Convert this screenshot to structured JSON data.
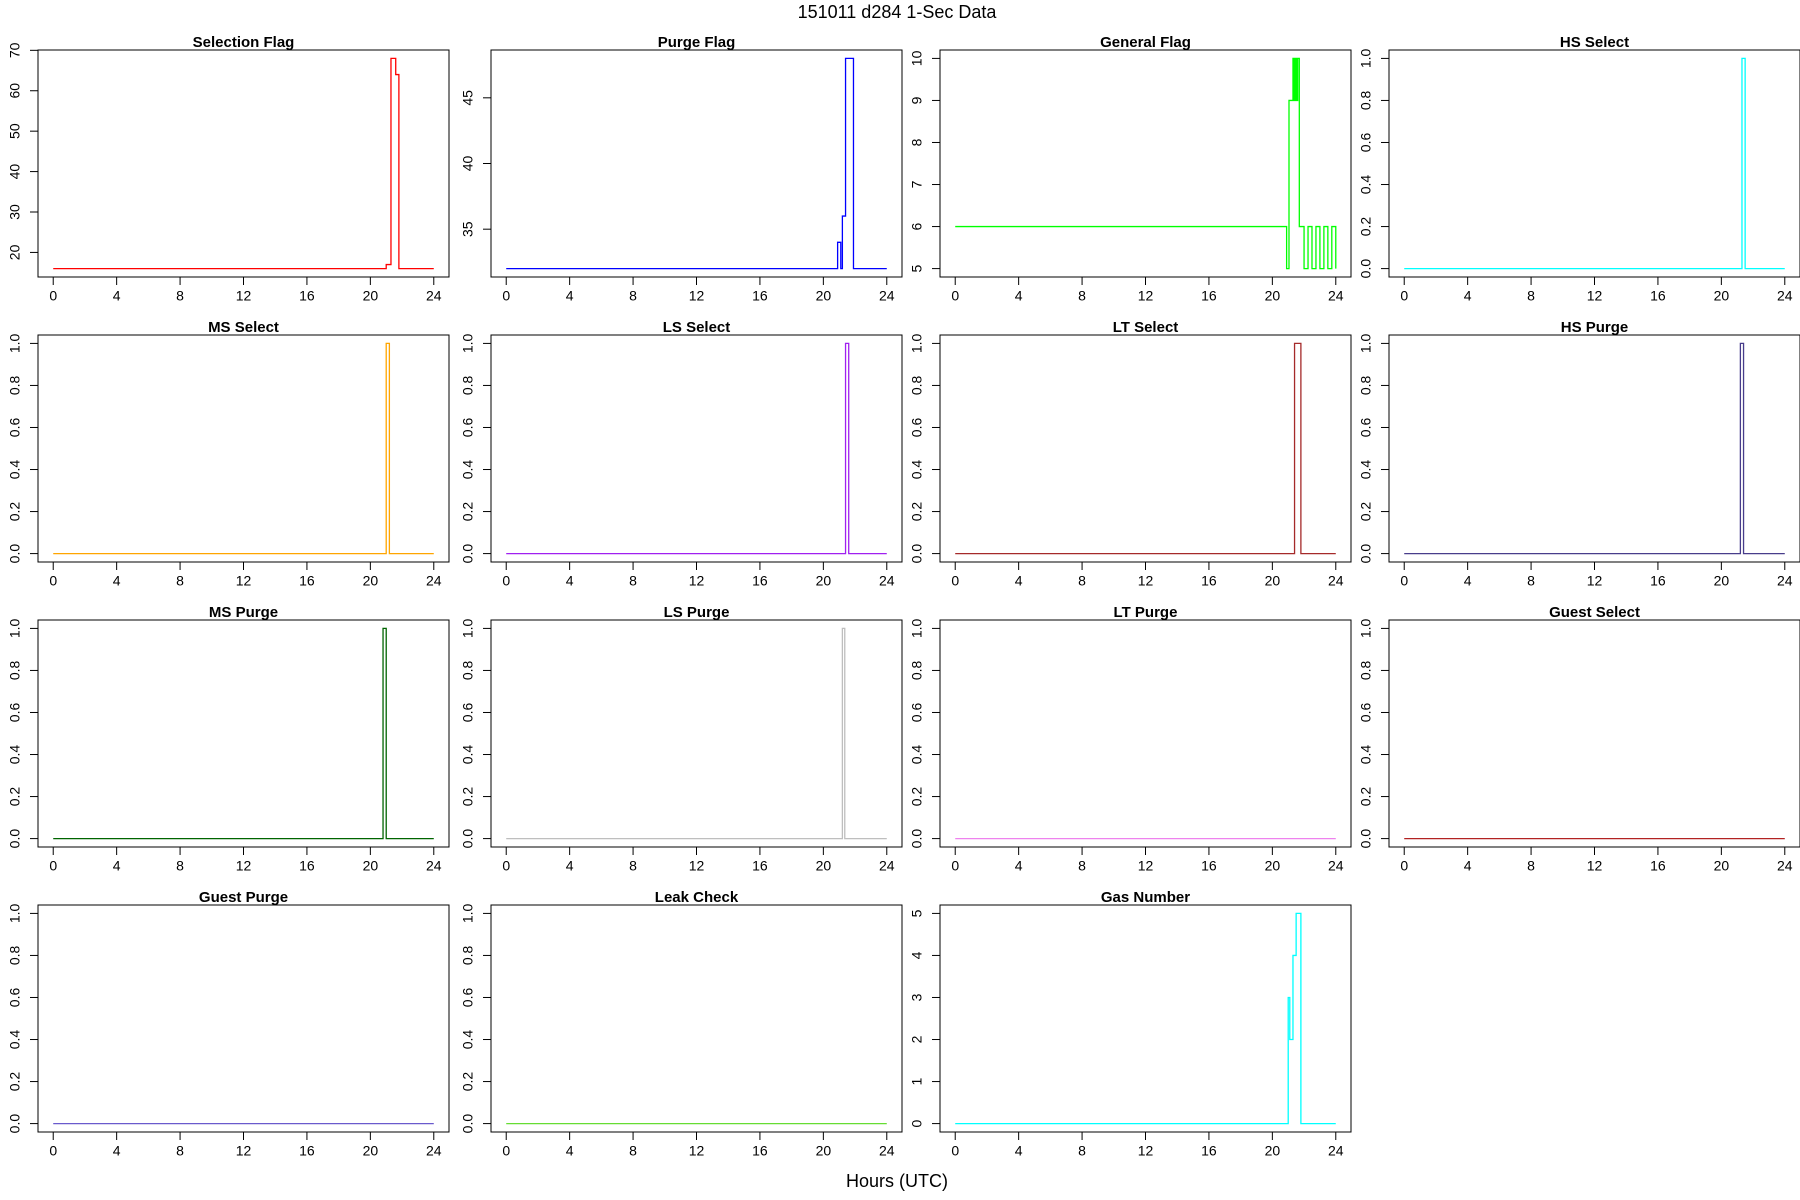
{
  "title": "151011   d284   1-Sec Data",
  "xlabel": "Hours (UTC)",
  "chart_data": [
    {
      "type": "line",
      "title": "Selection Flag",
      "color": "#ff0000",
      "xlim": [
        -0.96,
        24.96
      ],
      "xticks": [
        0,
        4,
        8,
        12,
        16,
        20,
        24
      ],
      "ylim": [
        13.92,
        70.08
      ],
      "yticks": [
        20,
        30,
        40,
        50,
        60,
        70
      ],
      "x": [
        0,
        21,
        21,
        21.3,
        21.3,
        21.6,
        21.6,
        21.8,
        21.8,
        24
      ],
      "values": [
        16,
        16,
        17,
        17,
        68,
        68,
        64,
        64,
        16,
        16
      ]
    },
    {
      "type": "line",
      "title": "Purge Flag",
      "color": "#0000ff",
      "xlim": [
        -0.96,
        24.96
      ],
      "xticks": [
        0,
        4,
        8,
        12,
        16,
        20,
        24
      ],
      "ylim": [
        31.36,
        48.64
      ],
      "yticks": [
        35,
        40,
        45
      ],
      "x": [
        0,
        20.9,
        20.9,
        21.1,
        21.1,
        21.2,
        21.2,
        21.4,
        21.4,
        21.9,
        21.9,
        24
      ],
      "values": [
        32,
        32,
        34,
        34,
        32,
        32,
        36,
        36,
        48,
        48,
        32,
        32
      ]
    },
    {
      "type": "line",
      "title": "General Flag",
      "color": "#00ff00",
      "xlim": [
        -0.96,
        24.96
      ],
      "xticks": [
        0,
        4,
        8,
        12,
        16,
        20,
        24
      ],
      "ylim": [
        4.8,
        10.2
      ],
      "yticks": [
        5,
        6,
        7,
        8,
        9,
        10
      ],
      "x": [
        0,
        20.9,
        20.9,
        21.05,
        21.05,
        21.3,
        21.3,
        21.35,
        21.35,
        21.4,
        21.4,
        21.45,
        21.45,
        21.5,
        21.5,
        21.55,
        21.55,
        21.6,
        21.6,
        21.7,
        21.7,
        22,
        22,
        22.25,
        22.25,
        22.5,
        22.5,
        22.75,
        22.75,
        23,
        23,
        23.25,
        23.25,
        23.5,
        23.5,
        23.75,
        23.75,
        24,
        24
      ],
      "values": [
        6,
        6,
        5,
        5,
        9,
        9,
        10,
        10,
        9,
        9,
        10,
        10,
        9,
        9,
        10,
        10,
        9,
        9,
        10,
        10,
        6,
        6,
        5,
        5,
        6,
        6,
        5,
        5,
        6,
        6,
        5,
        5,
        6,
        6,
        5,
        5,
        6,
        6,
        5
      ]
    },
    {
      "type": "line",
      "title": "HS Select",
      "color": "#00ffff",
      "xlim": [
        -0.96,
        24.96
      ],
      "xticks": [
        0,
        4,
        8,
        12,
        16,
        20,
        24
      ],
      "ylim": [
        -0.04,
        1.04
      ],
      "yticks": [
        {
          "value": 0,
          "label": "0.0"
        },
        0.2,
        0.4,
        0.6,
        0.8,
        {
          "value": 1,
          "label": "1.0"
        }
      ],
      "x": [
        0,
        21.3,
        21.3,
        21.5,
        21.5,
        24
      ],
      "values": [
        0,
        0,
        1,
        1,
        0,
        0
      ]
    },
    {
      "type": "line",
      "title": "MS Select",
      "color": "#ffa500",
      "xlim": [
        -0.96,
        24.96
      ],
      "xticks": [
        0,
        4,
        8,
        12,
        16,
        20,
        24
      ],
      "ylim": [
        -0.04,
        1.04
      ],
      "yticks": [
        {
          "value": 0,
          "label": "0.0"
        },
        0.2,
        0.4,
        0.6,
        0.8,
        {
          "value": 1,
          "label": "1.0"
        }
      ],
      "x": [
        0,
        21,
        21,
        21.2,
        21.2,
        24
      ],
      "values": [
        0,
        0,
        1,
        1,
        0,
        0
      ]
    },
    {
      "type": "line",
      "title": "LS Select",
      "color": "#a020f0",
      "xlim": [
        -0.96,
        24.96
      ],
      "xticks": [
        0,
        4,
        8,
        12,
        16,
        20,
        24
      ],
      "ylim": [
        -0.04,
        1.04
      ],
      "yticks": [
        {
          "value": 0,
          "label": "0.0"
        },
        0.2,
        0.4,
        0.6,
        0.8,
        {
          "value": 1,
          "label": "1.0"
        }
      ],
      "x": [
        0,
        21.4,
        21.4,
        21.6,
        21.6,
        24
      ],
      "values": [
        0,
        0,
        1,
        1,
        0,
        0
      ]
    },
    {
      "type": "line",
      "title": "LT Select",
      "color": "#a52a2a",
      "xlim": [
        -0.96,
        24.96
      ],
      "xticks": [
        0,
        4,
        8,
        12,
        16,
        20,
        24
      ],
      "ylim": [
        -0.04,
        1.04
      ],
      "yticks": [
        {
          "value": 0,
          "label": "0.0"
        },
        0.2,
        0.4,
        0.6,
        0.8,
        {
          "value": 1,
          "label": "1.0"
        }
      ],
      "x": [
        0,
        21.4,
        21.4,
        21.8,
        21.8,
        24
      ],
      "values": [
        0,
        0,
        1,
        1,
        0,
        0
      ]
    },
    {
      "type": "line",
      "title": "HS Purge",
      "color": "#483d8b",
      "xlim": [
        -0.96,
        24.96
      ],
      "xticks": [
        0,
        4,
        8,
        12,
        16,
        20,
        24
      ],
      "ylim": [
        -0.04,
        1.04
      ],
      "yticks": [
        {
          "value": 0,
          "label": "0.0"
        },
        0.2,
        0.4,
        0.6,
        0.8,
        {
          "value": 1,
          "label": "1.0"
        }
      ],
      "x": [
        0,
        21.2,
        21.2,
        21.4,
        21.4,
        24
      ],
      "values": [
        0,
        0,
        1,
        1,
        0,
        0
      ]
    },
    {
      "type": "line",
      "title": "MS Purge",
      "color": "#006400",
      "xlim": [
        -0.96,
        24.96
      ],
      "xticks": [
        0,
        4,
        8,
        12,
        16,
        20,
        24
      ],
      "ylim": [
        -0.04,
        1.04
      ],
      "yticks": [
        {
          "value": 0,
          "label": "0.0"
        },
        0.2,
        0.4,
        0.6,
        0.8,
        {
          "value": 1,
          "label": "1.0"
        }
      ],
      "x": [
        0,
        20.8,
        20.8,
        21,
        21,
        24
      ],
      "values": [
        0,
        0,
        1,
        1,
        0,
        0
      ]
    },
    {
      "type": "line",
      "title": "LS Purge",
      "color": "#bebebe",
      "xlim": [
        -0.96,
        24.96
      ],
      "xticks": [
        0,
        4,
        8,
        12,
        16,
        20,
        24
      ],
      "ylim": [
        -0.04,
        1.04
      ],
      "yticks": [
        {
          "value": 0,
          "label": "0.0"
        },
        0.2,
        0.4,
        0.6,
        0.8,
        {
          "value": 1,
          "label": "1.0"
        }
      ],
      "x": [
        0,
        21.2,
        21.2,
        21.35,
        21.35,
        24
      ],
      "values": [
        0,
        0,
        1,
        1,
        0,
        0
      ]
    },
    {
      "type": "line",
      "title": "LT Purge",
      "color": "#ee82ee",
      "xlim": [
        -0.96,
        24.96
      ],
      "xticks": [
        0,
        4,
        8,
        12,
        16,
        20,
        24
      ],
      "ylim": [
        -0.04,
        1.04
      ],
      "yticks": [
        {
          "value": 0,
          "label": "0.0"
        },
        0.2,
        0.4,
        0.6,
        0.8,
        {
          "value": 1,
          "label": "1.0"
        }
      ],
      "x": [
        0,
        24
      ],
      "values": [
        0,
        0
      ]
    },
    {
      "type": "line",
      "title": "Guest Select",
      "color": "#b22222",
      "xlim": [
        -0.96,
        24.96
      ],
      "xticks": [
        0,
        4,
        8,
        12,
        16,
        20,
        24
      ],
      "ylim": [
        -0.04,
        1.04
      ],
      "yticks": [
        {
          "value": 0,
          "label": "0.0"
        },
        0.2,
        0.4,
        0.6,
        0.8,
        {
          "value": 1,
          "label": "1.0"
        }
      ],
      "x": [
        0,
        24
      ],
      "values": [
        0,
        0
      ]
    },
    {
      "type": "line",
      "title": "Guest Purge",
      "color": "#6a5acd",
      "xlim": [
        -0.96,
        24.96
      ],
      "xticks": [
        0,
        4,
        8,
        12,
        16,
        20,
        24
      ],
      "ylim": [
        -0.04,
        1.04
      ],
      "yticks": [
        {
          "value": 0,
          "label": "0.0"
        },
        0.2,
        0.4,
        0.6,
        0.8,
        {
          "value": 1,
          "label": "1.0"
        }
      ],
      "x": [
        0,
        24
      ],
      "values": [
        0,
        0
      ]
    },
    {
      "type": "line",
      "title": "Leak Check",
      "color": "#66dd33",
      "xlim": [
        -0.96,
        24.96
      ],
      "xticks": [
        0,
        4,
        8,
        12,
        16,
        20,
        24
      ],
      "ylim": [
        -0.04,
        1.04
      ],
      "yticks": [
        {
          "value": 0,
          "label": "0.0"
        },
        0.2,
        0.4,
        0.6,
        0.8,
        {
          "value": 1,
          "label": "1.0"
        }
      ],
      "x": [
        0,
        24
      ],
      "values": [
        0,
        0
      ]
    },
    {
      "type": "line",
      "title": "Gas Number",
      "color": "#00ffff",
      "xlim": [
        -0.96,
        24.96
      ],
      "xticks": [
        0,
        4,
        8,
        12,
        16,
        20,
        24
      ],
      "ylim": [
        -0.2,
        5.2
      ],
      "yticks": [
        0,
        1,
        2,
        3,
        4,
        5
      ],
      "x": [
        0,
        21,
        21,
        21.1,
        21.1,
        21.3,
        21.3,
        21.5,
        21.5,
        21.8,
        21.8,
        24
      ],
      "values": [
        0,
        0,
        3,
        3,
        2,
        2,
        4,
        4,
        5,
        5,
        0,
        0
      ]
    }
  ]
}
